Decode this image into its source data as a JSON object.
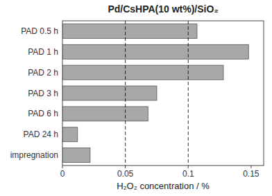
{
  "chart_data": {
    "type": "bar",
    "orientation": "horizontal",
    "title": "Pd/CsHPA(10 wt%)/SiO₂",
    "xlabel": "H₂O₂ concentration / %",
    "categories": [
      "PAD 0.5 h",
      "PAD 1 h",
      "PAD 2 h",
      "PAD 3 h",
      "PAD 6 h",
      "PAD 24 h",
      "impregnation"
    ],
    "values": [
      0.107,
      0.148,
      0.128,
      0.075,
      0.068,
      0.012,
      0.022
    ],
    "color": "#a8a8a8",
    "xlim": [
      0,
      0.16
    ],
    "xticks": [
      0,
      0.05,
      0.1,
      0.15
    ],
    "reference_lines": [
      0.05,
      0.1
    ],
    "grid": false
  }
}
